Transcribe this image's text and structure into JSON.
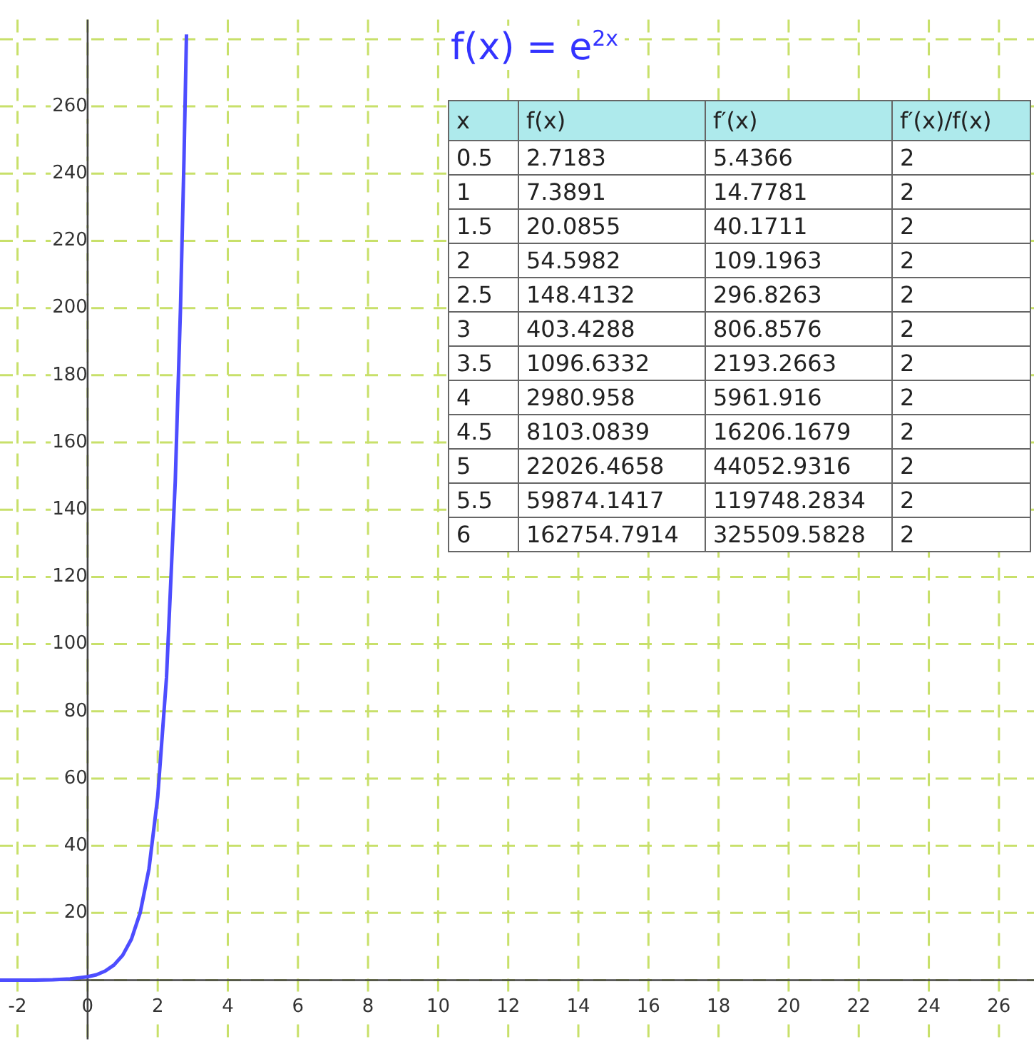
{
  "chart_data": {
    "type": "line",
    "title": "f(x) = e$^{2x}$",
    "x": [
      -2.5,
      -2,
      -1.5,
      -1,
      -0.5,
      0,
      0.25,
      0.5,
      0.75,
      1,
      1.25,
      1.5,
      1.75,
      2,
      2.25,
      2.5,
      2.65,
      2.75,
      2.82
    ],
    "values": [
      0.0,
      0.0,
      0.0,
      0.1,
      0.4,
      1.0,
      1.6,
      2.7,
      4.5,
      7.4,
      12.2,
      20.1,
      33.1,
      54.6,
      90.0,
      148.4,
      200.3,
      244.7,
      281.4
    ],
    "color": "#4d4dff",
    "marker": "none",
    "grid": true,
    "xlim": [
      -2.5,
      27
    ],
    "ylim": [
      -17.6,
      285.8
    ],
    "xticks": [
      -2,
      0,
      2,
      4,
      6,
      8,
      10,
      12,
      14,
      16,
      18,
      20,
      22,
      24,
      26
    ],
    "yticks": [
      {
        "value": 0,
        "label": null
      },
      20,
      40,
      60,
      80,
      100,
      120,
      140,
      160,
      180,
      200,
      220,
      240,
      260,
      {
        "value": 280,
        "label": null
      }
    ],
    "annotations": [
      "x",
      "f(x)",
      "f′(x)",
      "f′(x)/f(x)",
      "0.5",
      "2.7183",
      "5.4366",
      "2",
      "1",
      "7.3891",
      "14.7781",
      "2",
      "1.5",
      "20.0855",
      "40.1711",
      "2",
      "2",
      "54.5982",
      "109.1963",
      "2",
      "2.5",
      "148.4132",
      "296.8263",
      "2",
      "3",
      "403.4288",
      "806.8576",
      "2",
      "3.5",
      "1096.6332",
      "2193.2663",
      "2",
      "4",
      "2980.958",
      "5961.916",
      "2",
      "4.5",
      "8103.0839",
      "16206.1679",
      "2",
      "5",
      "22026.4658",
      "44052.9316",
      "2",
      "5.5",
      "59874.1417",
      "119748.2834",
      "2",
      "6",
      "162754.7914",
      "325509.5828",
      "2"
    ]
  }
}
